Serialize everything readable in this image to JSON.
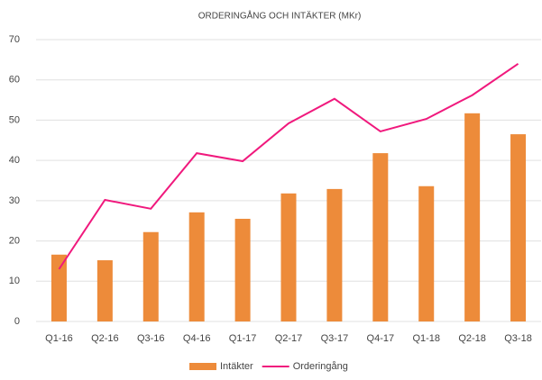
{
  "chart_data": {
    "type": "bar_line",
    "title": "ORDERINGÅNG OCH INTÄKTER (MKr)",
    "categories": [
      "Q1-16",
      "Q2-16",
      "Q3-16",
      "Q4-16",
      "Q1-17",
      "Q2-17",
      "Q3-17",
      "Q4-17",
      "Q1-18",
      "Q2-18",
      "Q3-18"
    ],
    "series": [
      {
        "name": "Intäkter",
        "type": "bar",
        "color": "#ed8b3a",
        "values": [
          16.6,
          15.2,
          22.2,
          27.1,
          25.5,
          31.8,
          32.9,
          41.8,
          33.6,
          51.7,
          46.5
        ]
      },
      {
        "name": "Orderingång",
        "type": "line",
        "color": "#f0197d",
        "values": [
          13,
          30.2,
          28,
          41.8,
          39.8,
          49.2,
          55.3,
          47.2,
          50.3,
          56.2,
          64
        ]
      }
    ],
    "ylim": [
      0,
      70
    ],
    "yticks": [
      0,
      10,
      20,
      30,
      40,
      50,
      60,
      70
    ],
    "grid": true,
    "legend": "bottom"
  }
}
